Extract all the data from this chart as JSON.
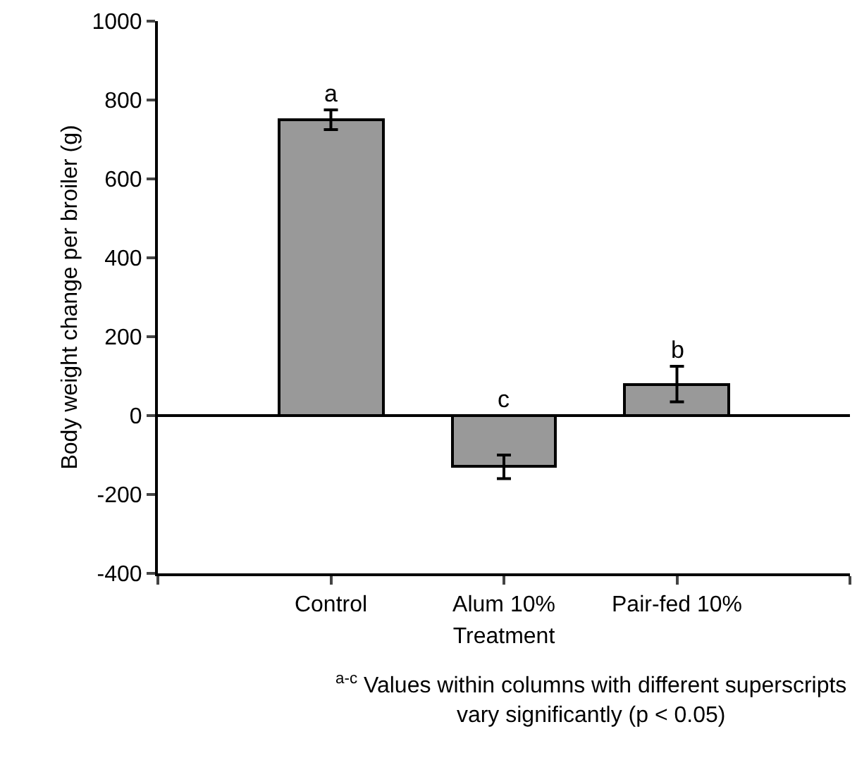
{
  "chart_data": {
    "type": "bar",
    "xlabel": "Treatment",
    "ylabel": "Body weight change per broiler (g)",
    "categories": [
      "Control",
      "Alum 10%",
      "Pair-fed 10%"
    ],
    "values": [
      750,
      -130,
      80
    ],
    "errors": [
      25,
      30,
      45
    ],
    "color": "#999999",
    "ylim": [
      -400,
      1000
    ],
    "yticks": [
      -400,
      -200,
      0,
      200,
      400,
      600,
      800,
      1000
    ],
    "ref_lines": [
      {
        "axis": "y",
        "value": 0,
        "label": null
      }
    ],
    "legend": false,
    "annotations": [
      {
        "text": "a",
        "x": "Control",
        "y": 775
      },
      {
        "text": "c",
        "x": "Alum 10%",
        "y": 0
      },
      {
        "text": "b",
        "x": "Pair-fed 10%",
        "y": 125
      },
      "$^{a-c}$ Values within columns with different superscripts\nvary significantly (p < 0.05)"
    ]
  }
}
